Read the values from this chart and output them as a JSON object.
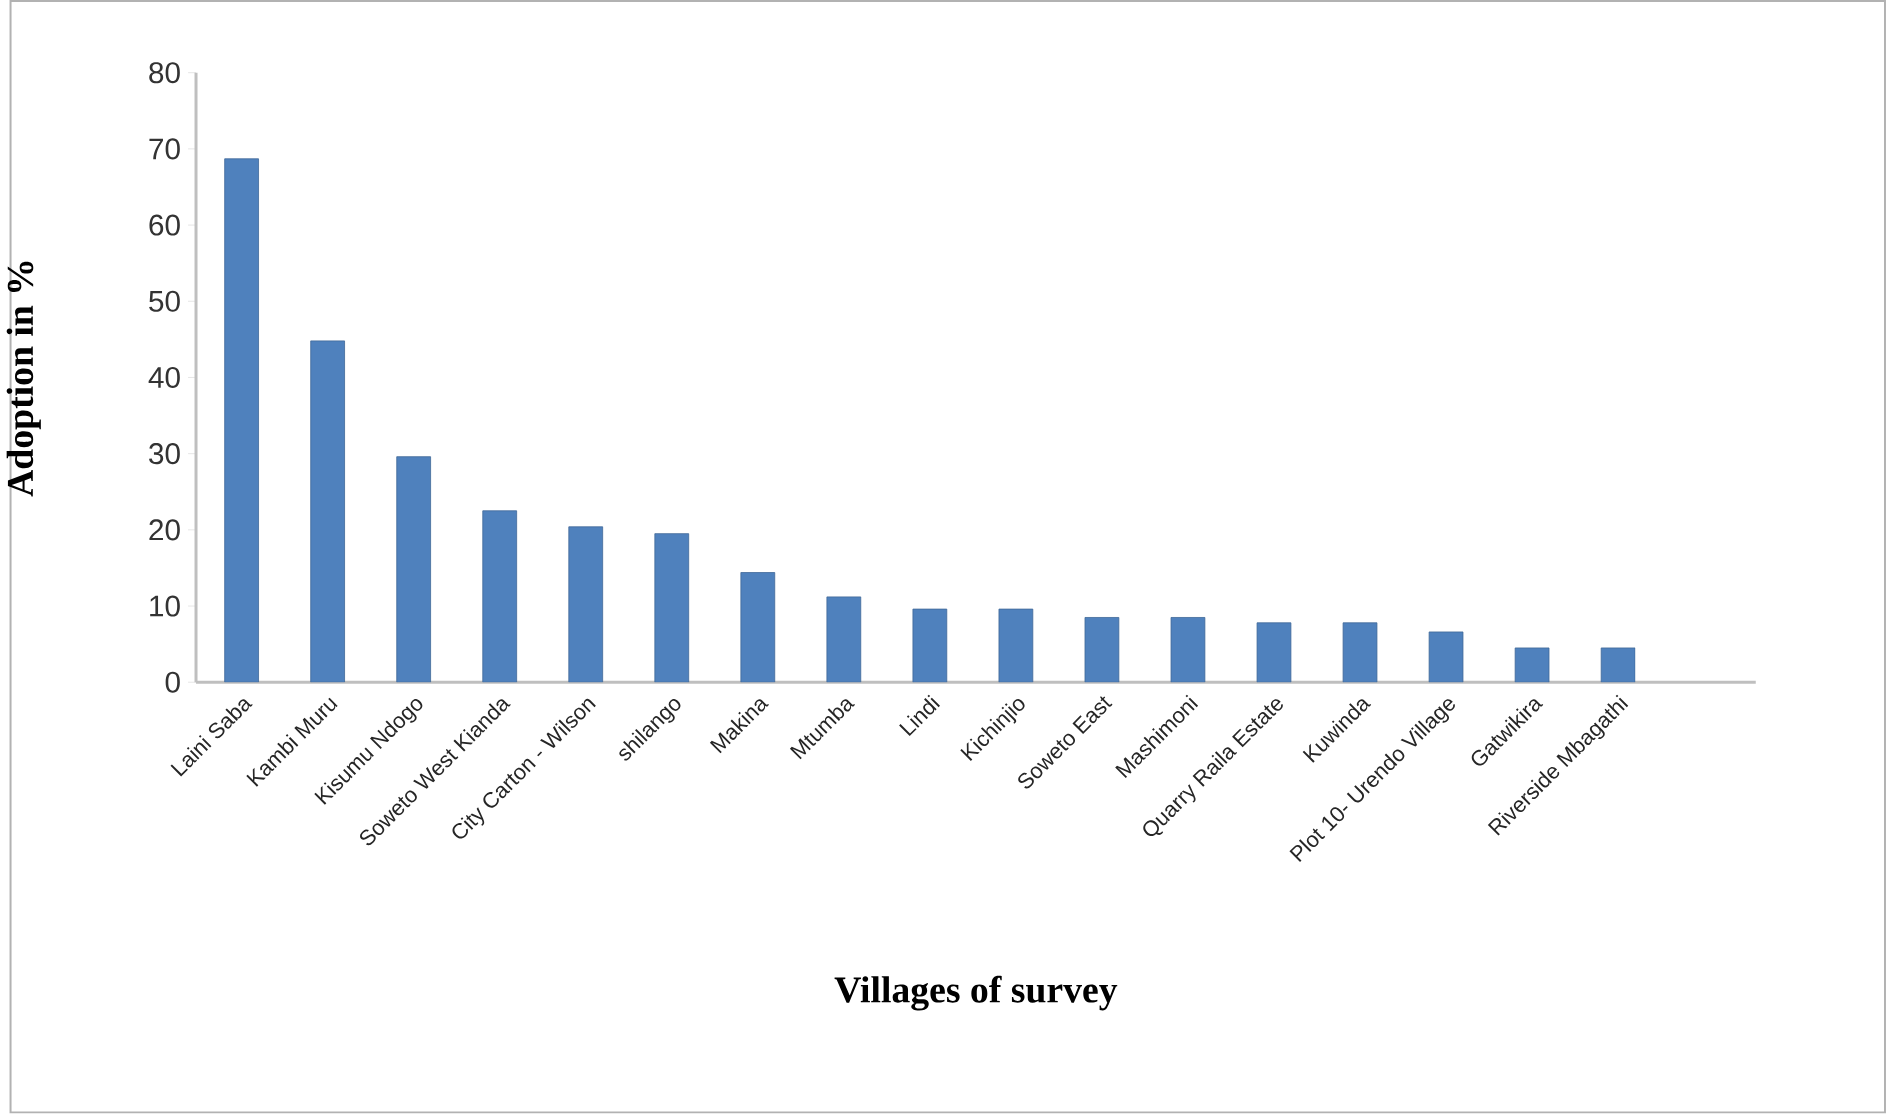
{
  "chart_data": {
    "type": "bar",
    "xlabel": "Villages of survey",
    "ylabel": "Adoption in %",
    "categories": [
      "Laini Saba",
      "Kambi Muru",
      "Kisumu Ndogo",
      "Soweto West Kianda",
      "City Carton - Wilson",
      "shilango",
      "Makina",
      "Mtumba",
      "Lindi",
      "Kichinjio",
      "Soweto East",
      "Mashimoni",
      "Quarry Raila Estate",
      "Kuwinda",
      "Plot 10- Urendo Village",
      "Gatwikira",
      "Riverside Mbagathi"
    ],
    "values": [
      68.7,
      44.8,
      29.6,
      22.5,
      20.4,
      19.5,
      14.4,
      11.2,
      9.6,
      9.6,
      8.5,
      8.5,
      7.8,
      7.8,
      6.6,
      4.5,
      4.5
    ],
    "color": "#4f81bd",
    "ylim": [
      0,
      80
    ],
    "yticks": [
      0,
      10,
      20,
      30,
      40,
      50,
      60,
      70,
      80
    ],
    "grid": false
  }
}
